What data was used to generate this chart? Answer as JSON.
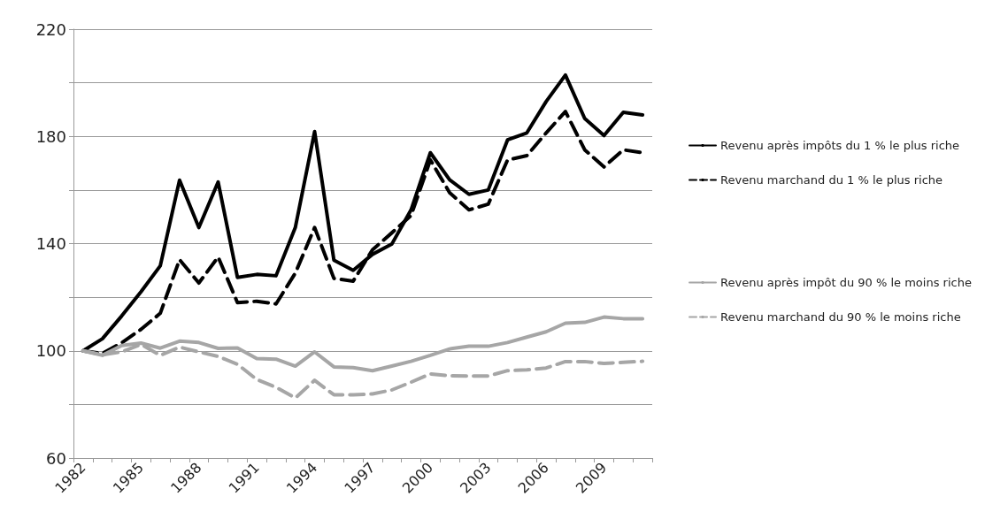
{
  "chart_data": {
    "type": "line",
    "categories": [
      "1982",
      null,
      null,
      "1985",
      null,
      null,
      "1988",
      null,
      null,
      "1991",
      null,
      null,
      "1994",
      null,
      null,
      "1997",
      null,
      null,
      "2000",
      null,
      null,
      "2003",
      null,
      null,
      "2006",
      null,
      null,
      "2009",
      null,
      null
    ],
    "series": [
      {
        "name": "Revenu après impôts du 1 % le plus riche",
        "color": "#000000",
        "values": [
          100,
          104.5,
          113,
          122,
          131.7,
          163.7,
          146,
          163,
          127.4,
          128.5,
          128,
          146,
          181.8,
          133.8,
          130,
          136,
          139.8,
          152.6,
          173.9,
          163.8,
          158.4,
          160,
          178.7,
          181.3,
          193,
          202.9,
          186.7,
          180.3,
          189,
          188
        ]
      },
      {
        "name": "Revenu marchand du 1 % le plus riche",
        "color": "#000000",
        "line_style": "dashed",
        "values": [
          100,
          99,
          103,
          108,
          114,
          134,
          125.3,
          135,
          118,
          118.5,
          117.5,
          129,
          146,
          127,
          126,
          137.7,
          144,
          150.5,
          171.2,
          159,
          152.6,
          154.7,
          171.2,
          172.8,
          181.3,
          189.3,
          175,
          168.6,
          175,
          173.9
        ]
      },
      {
        "name": "Revenu après impôt du 90 % le moins riche",
        "color": "#a6a6a6",
        "values": [
          100,
          98.3,
          102,
          102.9,
          101,
          103.6,
          103.1,
          100.9,
          101.1,
          97.1,
          96.9,
          94.3,
          99.6,
          94,
          93.7,
          92.6,
          94.3,
          96.1,
          98.3,
          100.7,
          101.7,
          101.7,
          103.1,
          105.1,
          107.1,
          110.3,
          110.6,
          112.6,
          112,
          112
        ]
      },
      {
        "name": "Revenu marchand du 90 % le moins riche",
        "color": "#a6a6a6",
        "line_style": "dashed",
        "values": [
          100,
          98.5,
          99.6,
          102.4,
          98.3,
          101.4,
          99.6,
          97.9,
          95,
          89.3,
          86.4,
          82.4,
          89,
          83.6,
          83.6,
          83.9,
          85.4,
          88.3,
          91.4,
          90.7,
          90.6,
          90.6,
          92.6,
          92.9,
          93.6,
          96,
          96,
          95.3,
          95.7,
          96.1
        ]
      }
    ],
    "ylim": [
      60,
      220
    ],
    "yticks": [
      60,
      {
        "value": 80,
        "label": null
      },
      100,
      {
        "value": 120,
        "label": null
      },
      140,
      {
        "value": 160,
        "label": null
      },
      180,
      {
        "value": 200,
        "label": null
      },
      220
    ],
    "grid": "y",
    "legend": "right",
    "marker": "none",
    "line_style": "solid"
  }
}
